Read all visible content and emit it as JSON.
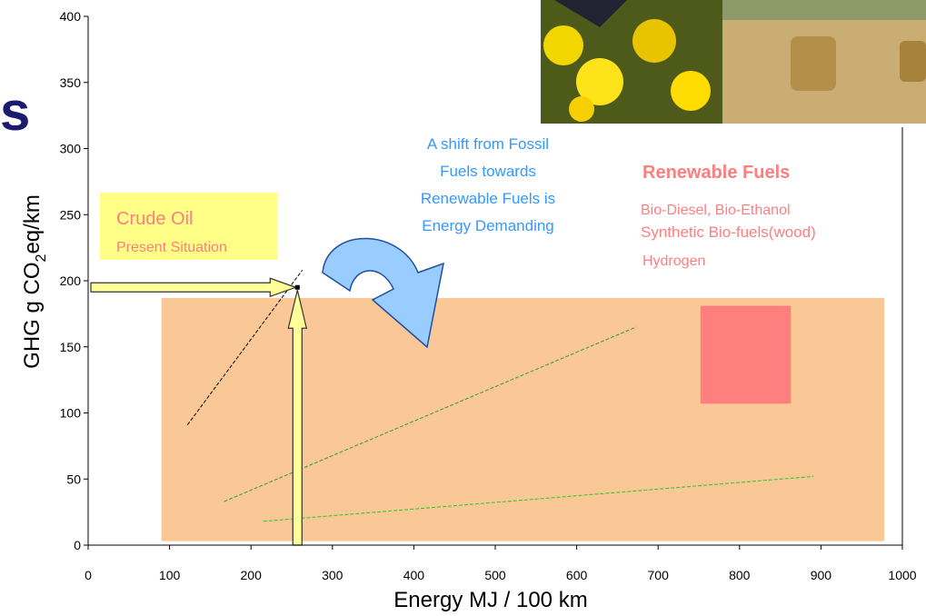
{
  "title": "s",
  "chart_data": {
    "type": "scatter",
    "xlabel": "Energy MJ / 100 km",
    "ylabel": [
      "GHG g CO",
      "2",
      "eq/km"
    ],
    "xlim": [
      0,
      1000
    ],
    "ylim": [
      0,
      400
    ],
    "xticks": [
      0,
      100,
      200,
      300,
      400,
      500,
      600,
      700,
      800,
      900,
      1000
    ],
    "yticks": [
      0,
      50,
      100,
      150,
      200,
      250,
      300,
      350,
      400
    ],
    "regions": [
      {
        "x": [
          90,
          978
        ],
        "y": [
          3,
          187
        ],
        "color": "#fac896"
      },
      {
        "x": [
          752,
          863
        ],
        "y": [
          107,
          181
        ],
        "color": "#ff7f7f"
      }
    ],
    "lines": [
      {
        "x": [
          122,
          263
        ],
        "y": [
          91,
          208
        ],
        "color": "#000000"
      },
      {
        "x": [
          167,
          673
        ],
        "y": [
          33,
          165
        ],
        "color": "#339933"
      },
      {
        "x": [
          215,
          891
        ],
        "y": [
          18,
          52
        ],
        "color": "#22cc22"
      }
    ],
    "points": [
      {
        "x": 257,
        "y": 195,
        "color": "#000000"
      }
    ],
    "annotations": {
      "crude_oil": [
        "Crude Oil",
        "Present Situation"
      ],
      "shift": [
        "A shift from Fossil",
        "Fuels towards",
        "Renewable Fuels is",
        "Energy Demanding"
      ],
      "renewable": [
        "Renewable Fuels",
        "Bio-Diesel, Bio-Ethanol",
        "Synthetic Bio-fuels(wood)",
        "Hydrogen"
      ]
    }
  }
}
